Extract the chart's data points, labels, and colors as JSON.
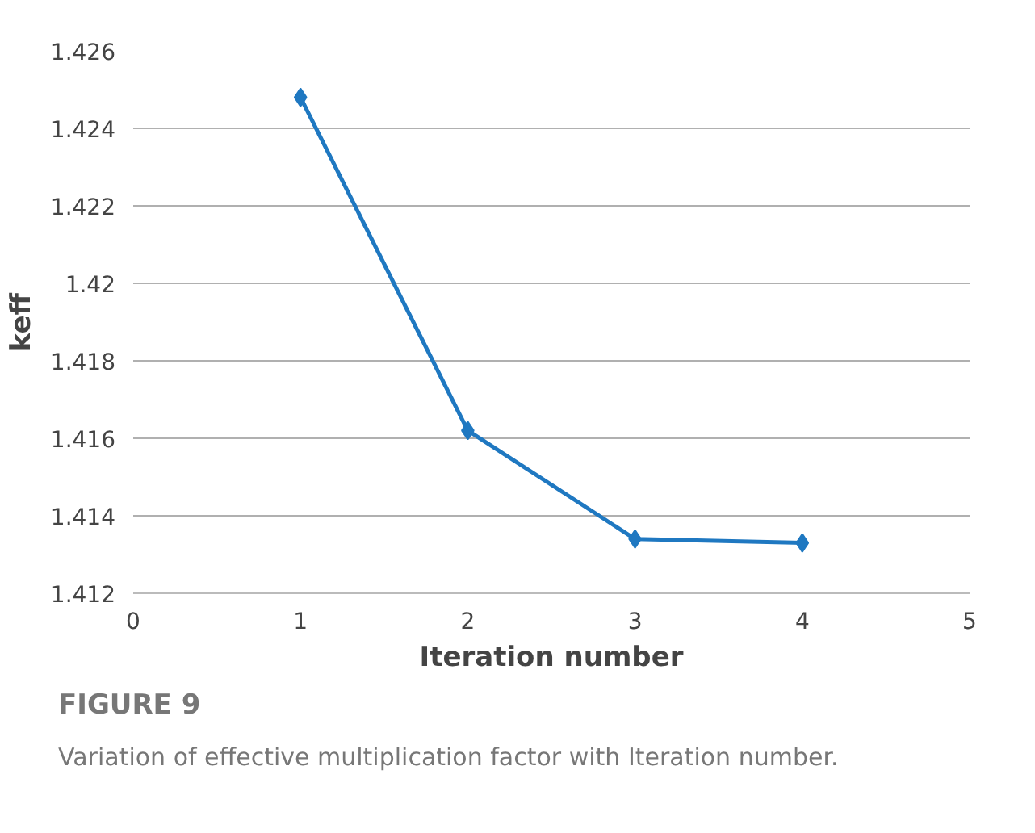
{
  "chart_data": {
    "type": "line",
    "x": [
      1,
      2,
      3,
      4
    ],
    "series": [
      {
        "color": "#1f78c1",
        "values": [
          1.4248,
          1.4162,
          1.4134,
          1.4133
        ]
      }
    ],
    "xlabel": "Iteration number",
    "ylabel": "keff",
    "xlim": [
      0,
      5
    ],
    "xticks": [
      0,
      1,
      2,
      3,
      4,
      5
    ],
    "ylim": [
      1.412,
      1.426
    ],
    "yticks": [
      1.412,
      1.414,
      1.416,
      1.418,
      {
        "value": 1.42,
        "label": "1.42"
      },
      1.422,
      1.424,
      1.426
    ],
    "grid": "y",
    "marker": "diamond",
    "line_style": "solid",
    "annotations": [
      "FIGURE 9",
      "Variation of effective multiplication factor with Iteration number."
    ]
  }
}
